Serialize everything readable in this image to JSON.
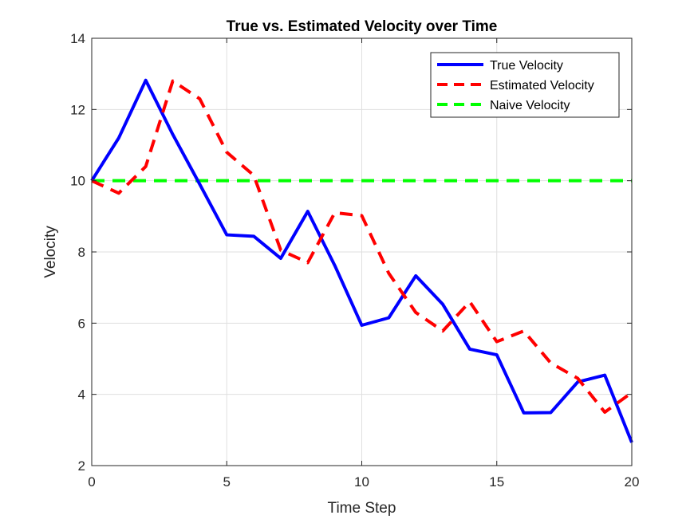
{
  "chart_data": {
    "type": "line",
    "title": "True vs. Estimated Velocity over Time",
    "xlabel": "Time Step",
    "ylabel": "Velocity",
    "xlim": [
      0,
      20
    ],
    "ylim": [
      2,
      14
    ],
    "xticks": [
      0,
      5,
      10,
      15,
      20
    ],
    "yticks": [
      2,
      4,
      6,
      8,
      10,
      12,
      14
    ],
    "grid": true,
    "legend_position": "top-right",
    "x": [
      0,
      1,
      2,
      3,
      4,
      5,
      6,
      7,
      8,
      9,
      10,
      11,
      12,
      13,
      14,
      15,
      16,
      17,
      18,
      19,
      20
    ],
    "series": [
      {
        "name": "True Velocity",
        "color": "#0000FF",
        "style": "solid",
        "values": [
          10.0,
          11.2,
          12.82,
          11.3,
          9.9,
          8.48,
          8.44,
          7.82,
          9.14,
          7.62,
          5.94,
          6.15,
          7.33,
          6.53,
          5.27,
          5.11,
          3.48,
          3.49,
          4.35,
          4.54,
          2.65
        ]
      },
      {
        "name": "Estimated Velocity",
        "color": "#FF0000",
        "style": "dashed",
        "values": [
          10.0,
          9.65,
          10.4,
          12.8,
          12.3,
          10.8,
          10.15,
          8.05,
          7.7,
          9.1,
          9.02,
          7.4,
          6.3,
          5.78,
          6.6,
          5.48,
          5.78,
          4.88,
          4.45,
          3.5,
          4.05
        ]
      },
      {
        "name": "Naive Velocity",
        "color": "#00FF00",
        "style": "dashed",
        "values": [
          10,
          10,
          10,
          10,
          10,
          10,
          10,
          10,
          10,
          10,
          10,
          10,
          10,
          10,
          10,
          10,
          10,
          10,
          10,
          10,
          10
        ]
      }
    ]
  }
}
